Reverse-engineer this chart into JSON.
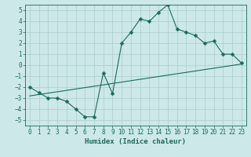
{
  "xlabel": "Humidex (Indice chaleur)",
  "ylabel": "",
  "background_color": "#cce8e8",
  "line_color": "#1a6b5a",
  "xlim": [
    -0.5,
    23.5
  ],
  "ylim": [
    -5.5,
    5.5
  ],
  "yticks": [
    -5,
    -4,
    -3,
    -2,
    -1,
    0,
    1,
    2,
    3,
    4,
    5
  ],
  "xticks": [
    0,
    1,
    2,
    3,
    4,
    5,
    6,
    7,
    8,
    9,
    10,
    11,
    12,
    13,
    14,
    15,
    16,
    17,
    18,
    19,
    20,
    21,
    22,
    23
  ],
  "curve1_x": [
    0,
    1,
    2,
    3,
    4,
    5,
    6,
    7,
    8,
    9,
    10,
    11,
    12,
    13,
    14,
    15,
    16,
    17,
    18,
    19,
    20,
    21,
    22,
    23
  ],
  "curve1_y": [
    -2.0,
    -2.5,
    -3.0,
    -3.0,
    -3.3,
    -4.0,
    -4.7,
    -4.7,
    -0.7,
    -2.6,
    2.0,
    3.0,
    4.2,
    4.0,
    4.8,
    5.5,
    3.3,
    3.0,
    2.7,
    2.0,
    2.2,
    1.0,
    1.0,
    0.2
  ],
  "curve2_x": [
    0,
    23
  ],
  "curve2_y": [
    -2.8,
    0.1
  ],
  "marker_size": 2.5,
  "line_width": 0.8,
  "font_size": 5.5,
  "xlabel_fontsize": 6.5,
  "grid_color": "#aacccc",
  "grid_alpha": 1.0,
  "grid_linewidth": 0.5
}
